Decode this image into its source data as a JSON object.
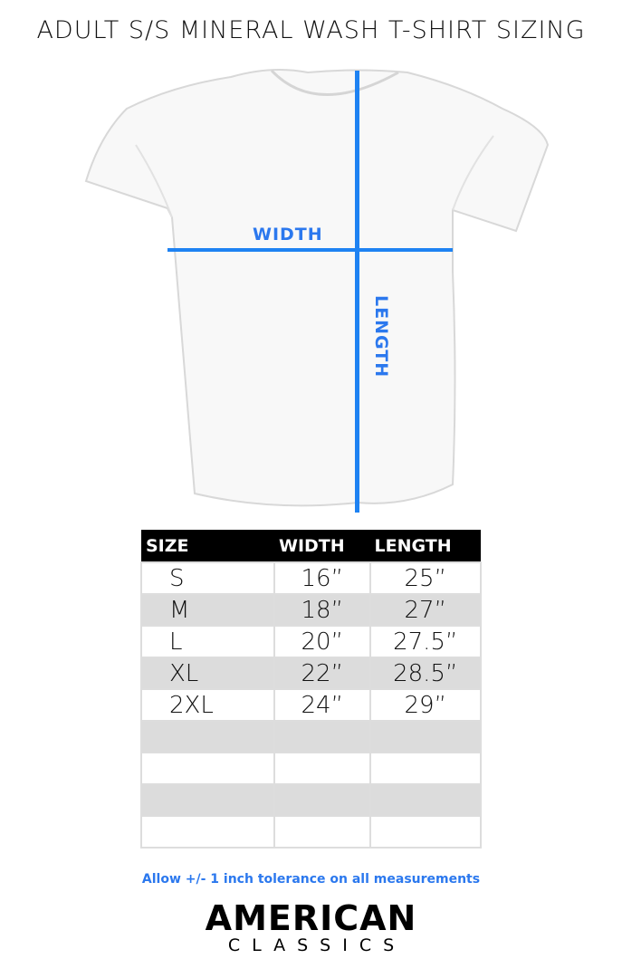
{
  "title": "ADULT S/S MINERAL WASH T-SHIRT SIZING",
  "diagram": {
    "width_label": "WIDTH",
    "length_label": "LENGTH",
    "line_color": "#1e82f2"
  },
  "table": {
    "headers": [
      "SIZE",
      "WIDTH",
      "LENGTH"
    ],
    "rows": [
      [
        "S",
        "16”",
        "25”"
      ],
      [
        "M",
        "18”",
        "27”"
      ],
      [
        "L",
        "20”",
        "27.5”"
      ],
      [
        "XL",
        "22”",
        "28.5”"
      ],
      [
        "2XL",
        "24”",
        "29”"
      ],
      [
        "",
        "",
        ""
      ],
      [
        "",
        "",
        ""
      ],
      [
        "",
        "",
        ""
      ],
      [
        "",
        "",
        ""
      ]
    ]
  },
  "note": "Allow +/- 1 inch tolerance on all measurements",
  "logo": {
    "line1": "AMERICAN",
    "line2": "CLASSICS"
  }
}
